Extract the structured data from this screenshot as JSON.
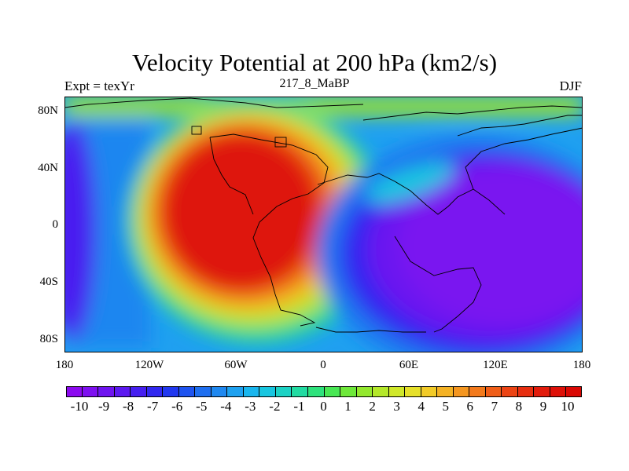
{
  "title": "Velocity Potential at 200 hPa (km2/s)",
  "subtitle_left": "Expt = texYr",
  "subtitle_center": "217_8_MaBP",
  "subtitle_right": "DJF",
  "lat_labels": [
    "80N",
    "40N",
    "0",
    "40S",
    "80S"
  ],
  "lon_labels": [
    "180",
    "120W",
    "60W",
    "0",
    "60E",
    "120E",
    "180"
  ],
  "colorbar_labels": [
    "-10",
    "-9",
    "-8",
    "-7",
    "-6",
    "-5",
    "-4",
    "-3",
    "-2",
    "-1",
    "0",
    "1",
    "2",
    "3",
    "4",
    "5",
    "6",
    "7",
    "8",
    "9",
    "10"
  ],
  "colorbar_colors": [
    "#8c0aef",
    "#7e10f0",
    "#6f14f0",
    "#5c19f0",
    "#461ff0",
    "#3128f0",
    "#2138f0",
    "#1f54f0",
    "#1f6ff0",
    "#1f88f0",
    "#1ea1f0",
    "#19b6ee",
    "#18c6e0",
    "#1cd2c4",
    "#22dba2",
    "#2ee27c",
    "#48e754",
    "#6ee83a",
    "#93e82e",
    "#b4e82a",
    "#d0e82a",
    "#e6e02a",
    "#f2cb28",
    "#f4b224",
    "#f49620",
    "#f37a1c",
    "#f05e18",
    "#ec4414",
    "#e72e10",
    "#e21c0c",
    "#de1008",
    "#da0804"
  ],
  "chart_data": {
    "type": "heatmap",
    "title": "Velocity Potential at 200 hPa (km2/s)",
    "experiment": "Expt = texYr",
    "period": "217_8_MaBP",
    "season": "DJF",
    "xlim": [
      -180,
      180
    ],
    "ylim": [
      -90,
      90
    ],
    "x_ticks": [
      "180",
      "120W",
      "60W",
      "0",
      "60E",
      "120E",
      "180"
    ],
    "y_ticks": [
      "80N",
      "40N",
      "0",
      "40S",
      "80S"
    ],
    "color_range": [
      -10,
      10
    ],
    "features": [
      {
        "name": "maximum centre",
        "lon": -60,
        "lat": 20,
        "value": 10
      },
      {
        "name": "minimum centre",
        "lon": 120,
        "lat": -10,
        "value": -10
      },
      {
        "name": "secondary minimum",
        "lon": -175,
        "lat": 0,
        "value": -9
      }
    ]
  }
}
